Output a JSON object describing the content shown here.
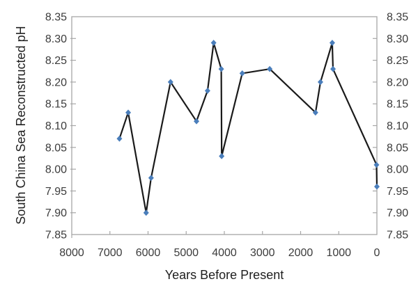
{
  "chart_data": {
    "type": "line",
    "title": "",
    "xlabel": "Years Before Present",
    "ylabel": "South China Sea Reconstructed pH",
    "grid": false,
    "legend": false,
    "x_axis": {
      "min": 0,
      "max": 8000,
      "reversed": true,
      "tick_interval": 1000,
      "tick_labels": [
        "8000",
        "7000",
        "6000",
        "5000",
        "4000",
        "3000",
        "2000",
        "1000",
        "0"
      ]
    },
    "y_axis": {
      "min": 7.85,
      "max": 8.35,
      "tick_interval": 0.05,
      "mirrored_right": true,
      "tick_labels": [
        "8.35",
        "8.30",
        "8.25",
        "8.20",
        "8.15",
        "8.10",
        "8.05",
        "8.00",
        "7.95",
        "7.90",
        "7.85"
      ]
    },
    "series": [
      {
        "name": "South China Sea reconstructed pH",
        "marker": "diamond",
        "points": [
          [
            6750,
            8.07
          ],
          [
            6520,
            8.13
          ],
          [
            6050,
            7.9
          ],
          [
            5920,
            7.98
          ],
          [
            5410,
            8.2
          ],
          [
            4730,
            8.11
          ],
          [
            4440,
            8.18
          ],
          [
            4280,
            8.29
          ],
          [
            4080,
            8.23
          ],
          [
            4070,
            8.03
          ],
          [
            3530,
            8.22
          ],
          [
            2810,
            8.23
          ],
          [
            1610,
            8.13
          ],
          [
            1480,
            8.2
          ],
          [
            1170,
            8.29
          ],
          [
            1150,
            8.23
          ],
          [
            10,
            8.01
          ],
          [
            0,
            7.96
          ]
        ]
      }
    ]
  },
  "colors": {
    "background": "#ffffff",
    "frame": "#a6a6a6",
    "tick": "#a6a6a6",
    "tick_text": "#3b3b3b",
    "title_text": "#1f1f1f",
    "line": "#1a1a1a",
    "marker": "#4a7ebb"
  }
}
